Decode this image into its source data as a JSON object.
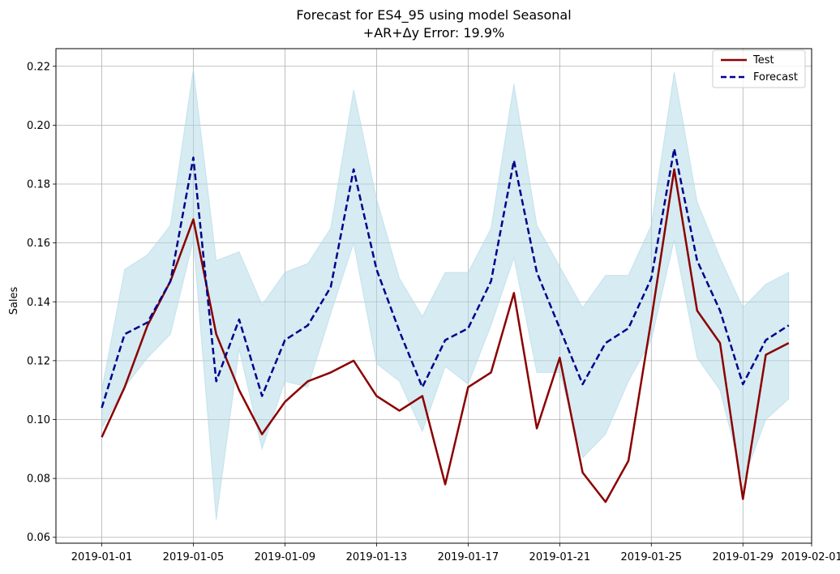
{
  "chart_data": {
    "type": "line",
    "title_line1": "Forecast for ES4_95 using model Seasonal",
    "title_line2": "+AR+Δy Error: 19.9%",
    "xlabel": "",
    "ylabel": "Sales",
    "x_start": "2019-01-01",
    "x_end": "2019-01-31",
    "x_ticks": [
      "2019-01-01",
      "2019-01-05",
      "2019-01-09",
      "2019-01-13",
      "2019-01-17",
      "2019-01-21",
      "2019-01-25",
      "2019-01-29",
      "2019-02-01"
    ],
    "xlim": [
      "2018-12-30",
      "2019-02-01"
    ],
    "ylim": [
      0.058,
      0.226
    ],
    "y_ticks": [
      0.06,
      0.08,
      0.1,
      0.12,
      0.14,
      0.16,
      0.18,
      0.2,
      0.22
    ],
    "y_tick_labels": [
      "0.06",
      "0.08",
      "0.10",
      "0.12",
      "0.14",
      "0.16",
      "0.18",
      "0.20",
      "0.22"
    ],
    "grid": true,
    "legend_position": "top-right",
    "series": [
      {
        "name": "Test",
        "style": "solid",
        "color": "#8b0000",
        "values": [
          0.094,
          0.111,
          0.132,
          0.147,
          0.168,
          0.129,
          0.11,
          0.095,
          0.106,
          0.113,
          0.116,
          0.12,
          0.108,
          0.103,
          0.108,
          0.078,
          0.111,
          0.116,
          0.143,
          0.097,
          0.121,
          0.082,
          0.072,
          0.086,
          0.134,
          0.185,
          0.137,
          0.126,
          0.073,
          0.122,
          0.126
        ]
      },
      {
        "name": "Forecast",
        "style": "dashed",
        "color": "#00008b",
        "values": [
          0.104,
          0.129,
          0.133,
          0.147,
          0.189,
          0.113,
          0.134,
          0.108,
          0.127,
          0.132,
          0.145,
          0.185,
          0.151,
          0.13,
          0.111,
          0.127,
          0.131,
          0.147,
          0.188,
          0.15,
          0.131,
          0.112,
          0.126,
          0.131,
          0.148,
          0.192,
          0.154,
          0.137,
          0.112,
          0.127,
          0.132
        ]
      }
    ],
    "band": {
      "color": "#add8e6",
      "upper": [
        0.11,
        0.151,
        0.156,
        0.166,
        0.219,
        0.154,
        0.157,
        0.139,
        0.15,
        0.153,
        0.165,
        0.212,
        0.175,
        0.148,
        0.135,
        0.15,
        0.15,
        0.165,
        0.214,
        0.166,
        0.152,
        0.138,
        0.149,
        0.149,
        0.166,
        0.218,
        0.174,
        0.155,
        0.138,
        0.146,
        0.15
      ],
      "lower": [
        0.097,
        0.111,
        0.121,
        0.129,
        0.161,
        0.066,
        0.124,
        0.09,
        0.113,
        0.111,
        0.136,
        0.16,
        0.119,
        0.113,
        0.096,
        0.118,
        0.112,
        0.132,
        0.155,
        0.116,
        0.116,
        0.087,
        0.095,
        0.113,
        0.127,
        0.161,
        0.121,
        0.11,
        0.079,
        0.1,
        0.107
      ]
    }
  }
}
